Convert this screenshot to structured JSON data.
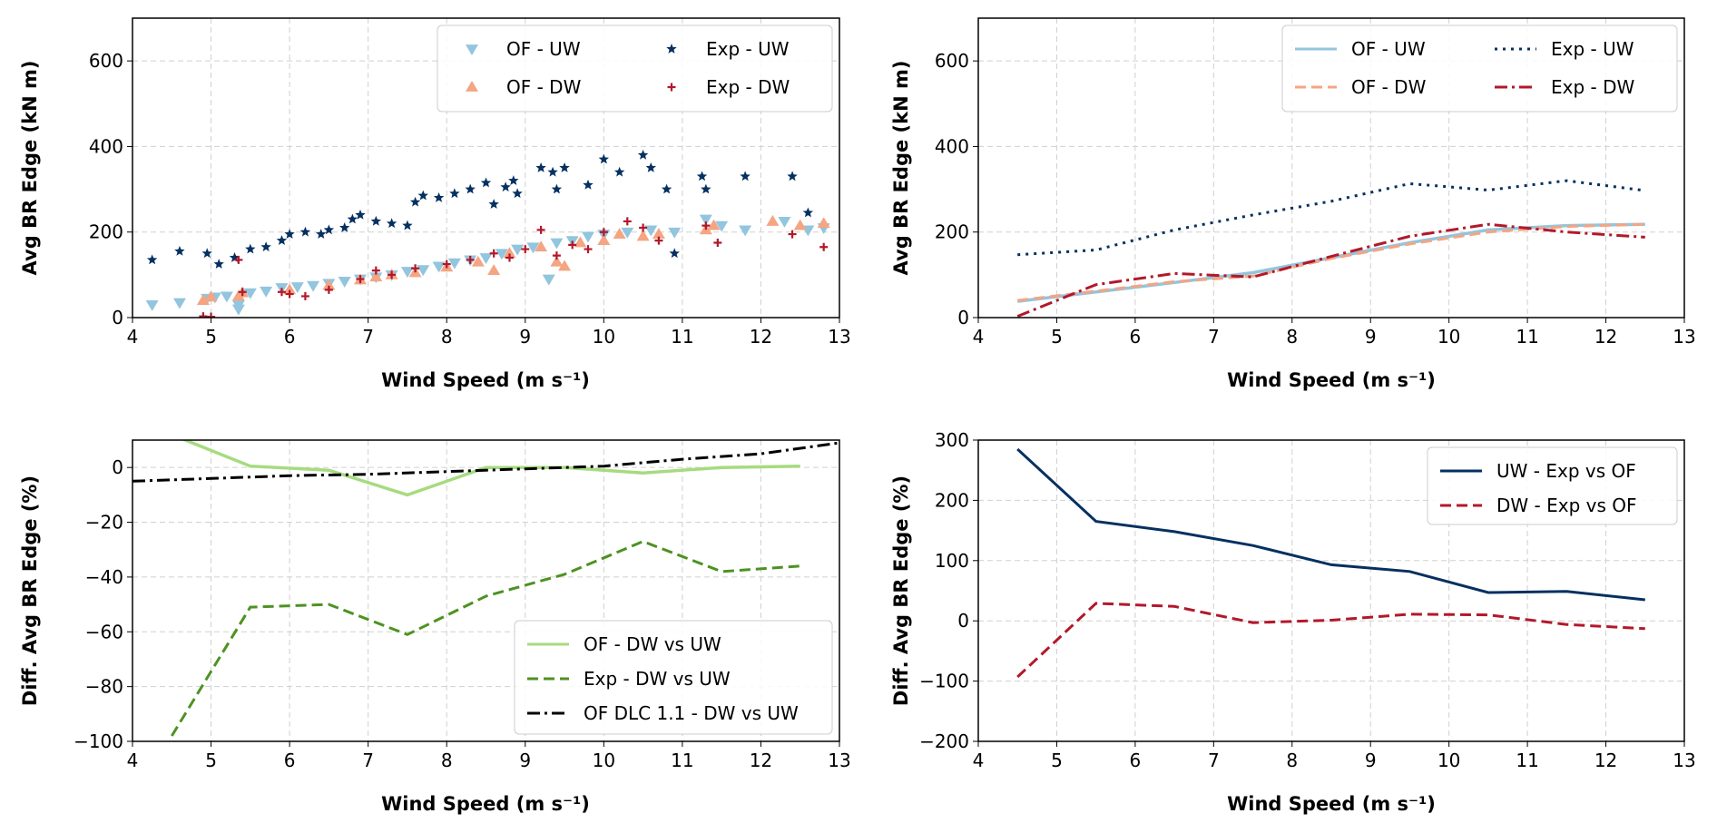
{
  "chart_data": [
    {
      "type": "scatter",
      "xlabel": "Wind Speed (m s⁻¹)",
      "ylabel": "Avg BR Edge (kN m)",
      "xlim": [
        4,
        13
      ],
      "ylim": [
        0,
        700
      ],
      "xticks": [
        4,
        5,
        6,
        7,
        8,
        9,
        10,
        11,
        12,
        13
      ],
      "yticks": [
        0,
        200,
        400,
        600
      ],
      "grid": true,
      "legend": "top-right",
      "series": [
        {
          "name": "OF - UW",
          "marker": "triangle-down",
          "color": "#92c5de",
          "points": [
            [
              4.25,
              30
            ],
            [
              4.6,
              35
            ],
            [
              4.95,
              45
            ],
            [
              5.05,
              48
            ],
            [
              5.2,
              50
            ],
            [
              5.35,
              20
            ],
            [
              5.35,
              30
            ],
            [
              5.5,
              58
            ],
            [
              5.7,
              62
            ],
            [
              5.9,
              70
            ],
            [
              6.1,
              72
            ],
            [
              6.3,
              75
            ],
            [
              6.5,
              80
            ],
            [
              6.7,
              85
            ],
            [
              6.9,
              90
            ],
            [
              7.1,
              95
            ],
            [
              7.3,
              100
            ],
            [
              7.5,
              108
            ],
            [
              7.7,
              112
            ],
            [
              7.9,
              120
            ],
            [
              8.1,
              128
            ],
            [
              8.3,
              135
            ],
            [
              8.5,
              140
            ],
            [
              8.7,
              150
            ],
            [
              8.9,
              160
            ],
            [
              9.1,
              165
            ],
            [
              9.3,
              90
            ],
            [
              9.4,
              175
            ],
            [
              9.6,
              180
            ],
            [
              9.8,
              190
            ],
            [
              10.0,
              195
            ],
            [
              10.3,
              200
            ],
            [
              10.6,
              205
            ],
            [
              10.9,
              200
            ],
            [
              11.3,
              230
            ],
            [
              11.5,
              215
            ],
            [
              11.8,
              205
            ],
            [
              12.3,
              225
            ],
            [
              12.6,
              205
            ],
            [
              12.8,
              210
            ]
          ]
        },
        {
          "name": "OF - DW",
          "marker": "triangle-up",
          "color": "#f4a582",
          "points": [
            [
              4.9,
              40
            ],
            [
              5.0,
              48
            ],
            [
              5.35,
              50
            ],
            [
              5.4,
              58
            ],
            [
              6.0,
              65
            ],
            [
              6.5,
              75
            ],
            [
              6.9,
              88
            ],
            [
              7.1,
              95
            ],
            [
              7.3,
              100
            ],
            [
              7.6,
              105
            ],
            [
              8.0,
              118
            ],
            [
              8.4,
              130
            ],
            [
              8.6,
              110
            ],
            [
              8.8,
              150
            ],
            [
              9.2,
              165
            ],
            [
              9.4,
              130
            ],
            [
              9.5,
              120
            ],
            [
              9.7,
              175
            ],
            [
              10.0,
              180
            ],
            [
              10.2,
              195
            ],
            [
              10.5,
              190
            ],
            [
              10.7,
              195
            ],
            [
              11.3,
              205
            ],
            [
              11.4,
              215
            ],
            [
              12.15,
              225
            ],
            [
              12.5,
              215
            ],
            [
              12.8,
              220
            ]
          ]
        },
        {
          "name": "Exp - UW",
          "marker": "star",
          "color": "#053061",
          "points": [
            [
              4.25,
              135
            ],
            [
              4.6,
              155
            ],
            [
              4.95,
              150
            ],
            [
              5.1,
              125
            ],
            [
              5.3,
              140
            ],
            [
              5.5,
              160
            ],
            [
              5.7,
              165
            ],
            [
              5.9,
              180
            ],
            [
              6.0,
              195
            ],
            [
              6.2,
              200
            ],
            [
              6.4,
              195
            ],
            [
              6.5,
              205
            ],
            [
              6.7,
              210
            ],
            [
              6.8,
              230
            ],
            [
              6.9,
              240
            ],
            [
              7.1,
              225
            ],
            [
              7.3,
              220
            ],
            [
              7.5,
              215
            ],
            [
              7.6,
              270
            ],
            [
              7.7,
              285
            ],
            [
              7.9,
              280
            ],
            [
              8.1,
              290
            ],
            [
              8.3,
              300
            ],
            [
              8.5,
              315
            ],
            [
              8.6,
              265
            ],
            [
              8.75,
              305
            ],
            [
              8.85,
              320
            ],
            [
              8.9,
              290
            ],
            [
              9.2,
              350
            ],
            [
              9.35,
              340
            ],
            [
              9.4,
              300
            ],
            [
              9.5,
              350
            ],
            [
              9.8,
              310
            ],
            [
              10.0,
              370
            ],
            [
              10.2,
              340
            ],
            [
              10.5,
              380
            ],
            [
              10.6,
              350
            ],
            [
              10.9,
              150
            ],
            [
              10.8,
              300
            ],
            [
              11.25,
              330
            ],
            [
              11.3,
              300
            ],
            [
              11.8,
              330
            ],
            [
              12.4,
              330
            ],
            [
              12.6,
              245
            ]
          ]
        },
        {
          "name": "Exp - DW",
          "marker": "plus",
          "color": "#b2182b",
          "points": [
            [
              4.9,
              3
            ],
            [
              5.0,
              2
            ],
            [
              5.35,
              135
            ],
            [
              5.4,
              60
            ],
            [
              5.9,
              60
            ],
            [
              6.0,
              55
            ],
            [
              6.2,
              50
            ],
            [
              6.5,
              65
            ],
            [
              6.9,
              90
            ],
            [
              7.1,
              110
            ],
            [
              7.3,
              100
            ],
            [
              7.6,
              115
            ],
            [
              8.0,
              125
            ],
            [
              8.3,
              135
            ],
            [
              8.6,
              150
            ],
            [
              8.8,
              140
            ],
            [
              9.0,
              160
            ],
            [
              9.2,
              205
            ],
            [
              9.4,
              145
            ],
            [
              9.6,
              170
            ],
            [
              9.8,
              160
            ],
            [
              10.0,
              200
            ],
            [
              10.3,
              225
            ],
            [
              10.5,
              210
            ],
            [
              10.7,
              180
            ],
            [
              11.3,
              215
            ],
            [
              11.45,
              175
            ],
            [
              12.4,
              195
            ],
            [
              12.8,
              165
            ]
          ]
        }
      ]
    },
    {
      "type": "line",
      "xlabel": "Wind Speed (m s⁻¹)",
      "ylabel": "Avg BR Edge (kN m)",
      "xlim": [
        4,
        13
      ],
      "ylim": [
        0,
        700
      ],
      "xticks": [
        4,
        5,
        6,
        7,
        8,
        9,
        10,
        11,
        12,
        13
      ],
      "yticks": [
        0,
        200,
        400,
        600
      ],
      "grid": true,
      "legend": "top-right",
      "x": [
        4.5,
        5.5,
        6.5,
        7.5,
        8.5,
        9.5,
        10.5,
        11.5,
        12.5
      ],
      "series": [
        {
          "name": "OF - UW",
          "style": "solid",
          "color": "#92c5de",
          "values": [
            38,
            60,
            82,
            105,
            140,
            175,
            205,
            215,
            218
          ]
        },
        {
          "name": "OF - DW",
          "style": "dashed",
          "color": "#f4a582",
          "values": [
            40,
            62,
            84,
            97,
            138,
            172,
            200,
            213,
            218
          ]
        },
        {
          "name": "Exp - UW",
          "style": "dotted",
          "color": "#053061",
          "values": [
            147,
            158,
            205,
            240,
            272,
            313,
            298,
            320,
            297
          ]
        },
        {
          "name": "Exp - DW",
          "style": "dashdot",
          "color": "#b2182b",
          "values": [
            3,
            77,
            103,
            95,
            143,
            190,
            218,
            200,
            188
          ]
        }
      ]
    },
    {
      "type": "line",
      "xlabel": "Wind Speed (m s⁻¹)",
      "ylabel": "Diff. Avg BR Edge (%)",
      "xlim": [
        4,
        13
      ],
      "ylim": [
        -100,
        10
      ],
      "xticks": [
        4,
        5,
        6,
        7,
        8,
        9,
        10,
        11,
        12,
        13
      ],
      "yticks": [
        -100,
        -80,
        -60,
        -40,
        -20,
        0
      ],
      "grid": true,
      "legend": "bottom-right",
      "series": [
        {
          "name": "OF - DW vs UW",
          "style": "solid",
          "color": "#a6db7f",
          "x": [
            4.5,
            5.5,
            6.5,
            7.5,
            8.5,
            9.5,
            10.5,
            11.5,
            12.5
          ],
          "values": [
            12,
            0.5,
            -1,
            -10,
            0,
            0,
            -2,
            0,
            0.5
          ]
        },
        {
          "name": "Exp - DW vs UW",
          "style": "dashed",
          "color": "#4d9221",
          "x": [
            4.5,
            5.5,
            6.5,
            7.5,
            8.5,
            9.5,
            10.5,
            11.5,
            12.5
          ],
          "values": [
            -98,
            -51,
            -50,
            -61,
            -47,
            -39,
            -27,
            -38,
            -36
          ]
        },
        {
          "name": "OF DLC 1.1 - DW vs UW",
          "style": "dashdot",
          "color": "#000000",
          "x": [
            4,
            5,
            6,
            7,
            8,
            9,
            10,
            11,
            12,
            13
          ],
          "values": [
            -5,
            -4,
            -3,
            -2.5,
            -1.5,
            -0.5,
            0.5,
            3,
            5,
            9
          ]
        }
      ]
    },
    {
      "type": "line",
      "xlabel": "Wind Speed (m s⁻¹)",
      "ylabel": "Diff. Avg BR Edge (%)",
      "xlim": [
        4,
        13
      ],
      "ylim": [
        -200,
        300
      ],
      "xticks": [
        4,
        5,
        6,
        7,
        8,
        9,
        10,
        11,
        12,
        13
      ],
      "yticks": [
        -200,
        -100,
        0,
        100,
        200,
        300
      ],
      "grid": true,
      "legend": "top-right",
      "series": [
        {
          "name": "UW - Exp vs OF",
          "style": "solid",
          "color": "#053061",
          "x": [
            4.5,
            5.5,
            6.5,
            7.5,
            8.5,
            9.5,
            10.5,
            11.5,
            12.5
          ],
          "values": [
            285,
            165,
            148,
            125,
            93,
            82,
            47,
            49,
            35
          ]
        },
        {
          "name": "DW - Exp vs OF",
          "style": "dashed",
          "color": "#b2182b",
          "x": [
            4.5,
            5.5,
            6.5,
            7.5,
            8.5,
            9.5,
            10.5,
            11.5,
            12.5
          ],
          "values": [
            -93,
            29,
            24,
            -3,
            1,
            11,
            10,
            -6,
            -13
          ]
        }
      ]
    }
  ]
}
